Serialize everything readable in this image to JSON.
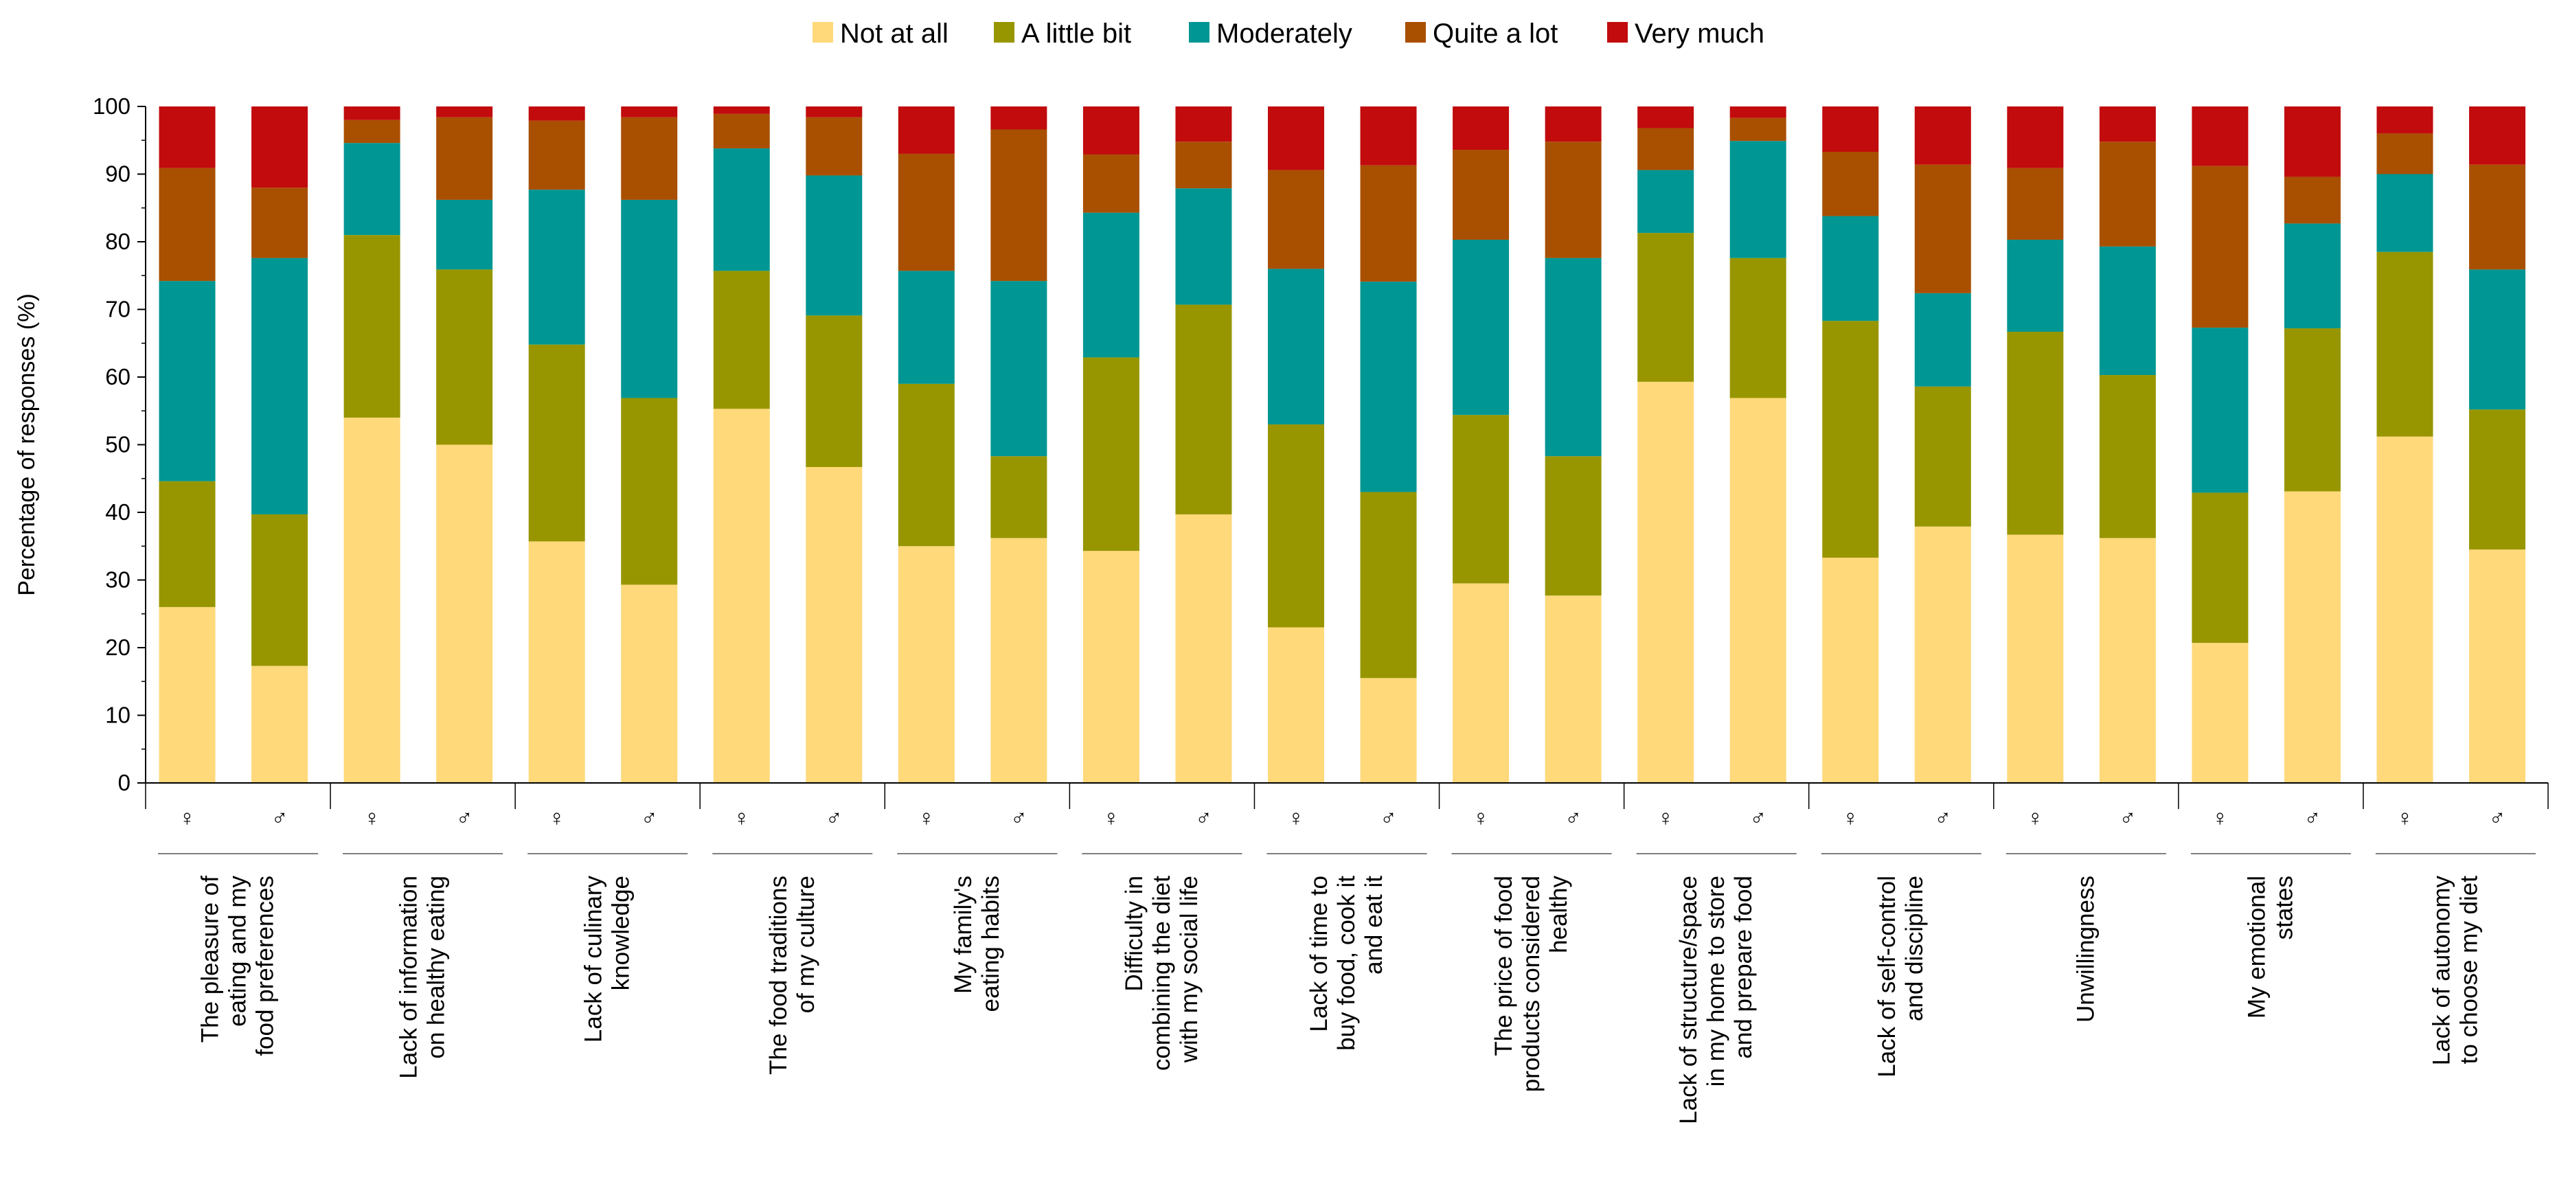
{
  "chart_data": {
    "type": "bar",
    "stacked": true,
    "xlabel": "",
    "ylabel": "Percentage of responses (%)",
    "ylim": [
      0,
      100
    ],
    "yticks": [
      0,
      10,
      20,
      30,
      40,
      50,
      60,
      70,
      80,
      90,
      100
    ],
    "legend_position": "top-center",
    "gender_symbols": [
      "♀",
      "♂"
    ],
    "groups": [
      {
        "label": [
          "The pleasure of",
          "eating and my",
          "food preferences"
        ]
      },
      {
        "label": [
          "Lack of information",
          "on healthy eating"
        ]
      },
      {
        "label": [
          "Lack of culinary",
          "knowledge"
        ]
      },
      {
        "label": [
          "The food traditions",
          "of my culture"
        ]
      },
      {
        "label": [
          "My family's",
          "eating habits"
        ]
      },
      {
        "label": [
          "Difficulty in",
          "combining the diet",
          "with my social life"
        ]
      },
      {
        "label": [
          "Lack of time to",
          "buy food, cook it",
          "and eat it"
        ]
      },
      {
        "label": [
          "The price of food",
          "products considered",
          "healthy"
        ]
      },
      {
        "label": [
          "Lack of structure/space",
          "in my home to store",
          "and prepare food"
        ]
      },
      {
        "label": [
          "Lack of self-control",
          "and discipline"
        ]
      },
      {
        "label": [
          "Unwillingness"
        ]
      },
      {
        "label": [
          "My emotional",
          "states"
        ]
      },
      {
        "label": [
          "Lack of autonomy",
          "to choose my diet"
        ]
      }
    ],
    "series": [
      {
        "name": "Not at all",
        "color": "#FFD97A",
        "female": [
          26,
          54,
          35.7,
          55.3,
          35,
          34.3,
          23,
          29.5,
          59.3,
          33.3,
          36.7,
          20.7,
          51.2
        ],
        "male": [
          17.3,
          50,
          29.3,
          46.7,
          36.2,
          39.7,
          15.5,
          27.7,
          56.9,
          37.9,
          36.2,
          43.1,
          34.5
        ]
      },
      {
        "name": "A little bit",
        "color": "#979600",
        "female": [
          18.6,
          27,
          29.1,
          20.4,
          24,
          28.6,
          30,
          24.9,
          22,
          35,
          30,
          22.2,
          27.3
        ],
        "male": [
          22.4,
          25.9,
          27.6,
          22.4,
          12.1,
          31,
          27.5,
          20.6,
          20.7,
          20.7,
          24.1,
          24.1,
          20.7
        ]
      },
      {
        "name": "Moderately",
        "color": "#009693",
        "female": [
          29.6,
          13.6,
          22.9,
          18.1,
          16.7,
          21.4,
          23,
          25.9,
          9.3,
          15.5,
          13.6,
          24.4,
          11.5
        ],
        "male": [
          37.9,
          10.3,
          29.3,
          20.7,
          25.9,
          17.2,
          31.1,
          29.3,
          17.3,
          13.8,
          19.0,
          15.5,
          20.7
        ]
      },
      {
        "name": "Quite a lot",
        "color": "#A94F00",
        "female": [
          16.7,
          3.4,
          10.2,
          5.1,
          17.3,
          8.6,
          14.6,
          13.3,
          6.2,
          9.5,
          10.6,
          23.9,
          6.0
        ],
        "male": [
          10.4,
          12.2,
          12.2,
          8.6,
          22.4,
          6.9,
          17.2,
          17.2,
          3.4,
          19.0,
          15.5,
          6.9,
          15.5
        ]
      },
      {
        "name": "Very much",
        "color": "#C10B0D",
        "female": [
          9.1,
          2.0,
          2.1,
          1.1,
          7.0,
          7.1,
          9.4,
          6.4,
          3.2,
          6.7,
          9.1,
          8.8,
          4.0
        ],
        "male": [
          12.0,
          1.6,
          1.6,
          1.6,
          3.4,
          5.2,
          8.7,
          5.2,
          1.7,
          8.6,
          5.2,
          10.4,
          8.6
        ]
      }
    ]
  }
}
